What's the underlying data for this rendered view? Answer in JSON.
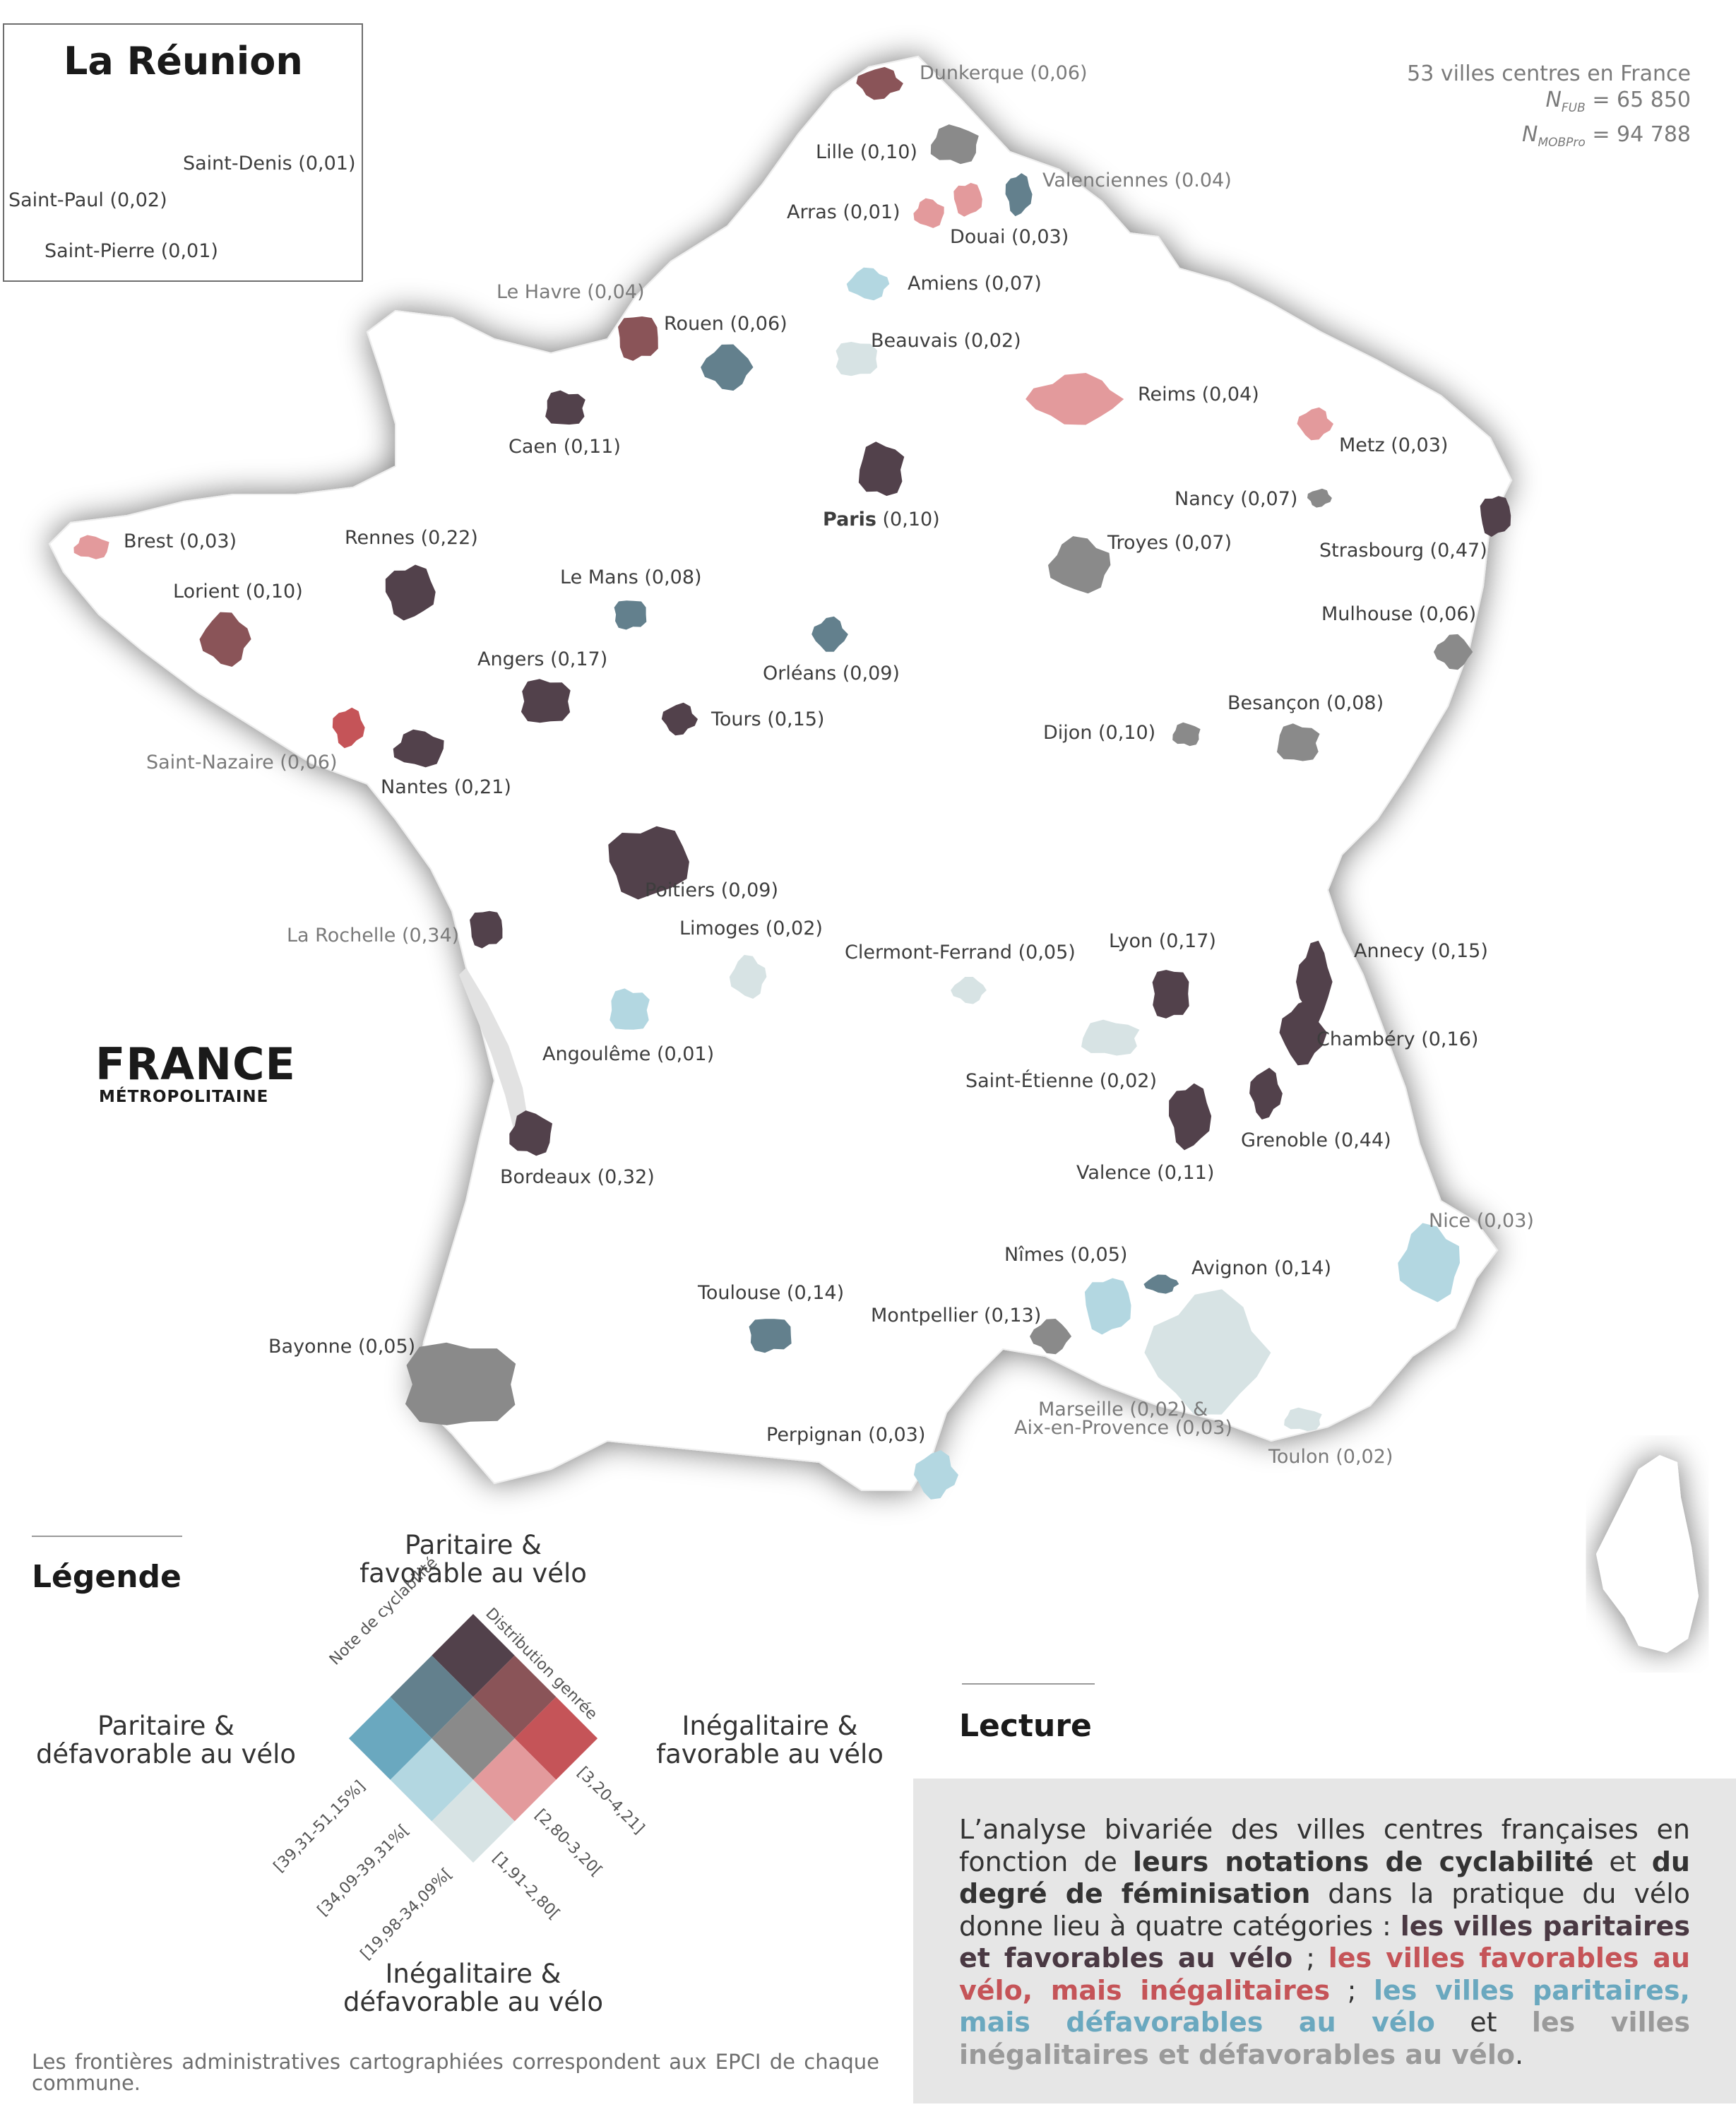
{
  "reunion": {
    "title": "La Réunion",
    "labels": [
      {
        "id": "saint-denis",
        "text": "Saint-Denis (0,01)"
      },
      {
        "id": "saint-paul",
        "text": "Saint-Paul (0,02)"
      },
      {
        "id": "saint-pierre",
        "text": "Saint-Pierre (0,01)"
      }
    ],
    "color": "#d7e3e4"
  },
  "stats": {
    "line1": "53 villes centres en France",
    "fub_sym": "N",
    "fub_sub": "FUB",
    "fub_val": "= 65 850",
    "mob_sym": "N",
    "mob_sub": "MOBPro",
    "mob_val": "= 94 788"
  },
  "france_title": "FRANCE",
  "france_subtitle": "MÉTROPOLITAINE",
  "palette": {
    "c11": "#52414b",
    "c12": "#8a5458",
    "c13": "#c55458",
    "c21": "#63808d",
    "c22": "#8a8a8a",
    "c23": "#e39a9c",
    "c31": "#6aa8bf",
    "c32": "#b3d7e1",
    "c33": "#d7e3e4",
    "land": "#ffffff",
    "shadow": "#d8d8d8"
  },
  "cities": [
    {
      "label": "Dunkerque (0,06)",
      "cls": "c12",
      "tone": "grey"
    },
    {
      "label": "Lille (0,10)",
      "cls": "c22",
      "tone": "dark"
    },
    {
      "label": "Valenciennes (0.04)",
      "cls": "c21",
      "tone": "grey"
    },
    {
      "label": "Arras (0,01)",
      "cls": "c23",
      "tone": "dark"
    },
    {
      "label": "Douai (0,03)",
      "cls": "c23",
      "tone": "dark"
    },
    {
      "label": "Amiens (0,07)",
      "cls": "c32",
      "tone": "dark"
    },
    {
      "label": "Le Havre (0,04)",
      "cls": "c12",
      "tone": "grey"
    },
    {
      "label": "Rouen (0,06)",
      "cls": "c21",
      "tone": "dark"
    },
    {
      "label": "Beauvais (0,02)",
      "cls": "c33",
      "tone": "dark"
    },
    {
      "label": "Reims (0,04)",
      "cls": "c23",
      "tone": "dark"
    },
    {
      "label": "Caen (0,11)",
      "cls": "c11",
      "tone": "dark"
    },
    {
      "label": "Metz (0,03)",
      "cls": "c23",
      "tone": "dark"
    },
    {
      "label": "Paris (0,10)",
      "cls": "c11",
      "tone": "dark"
    },
    {
      "label": "Nancy (0,07)",
      "cls": "c22",
      "tone": "dark"
    },
    {
      "label": "Brest (0,03)",
      "cls": "c23",
      "tone": "dark"
    },
    {
      "label": "Rennes (0,22)",
      "cls": "c11",
      "tone": "dark"
    },
    {
      "label": "Troyes (0,07)",
      "cls": "c22",
      "tone": "dark"
    },
    {
      "label": "Strasbourg (0,47)",
      "cls": "c11",
      "tone": "dark"
    },
    {
      "label": "Lorient (0,10)",
      "cls": "c12",
      "tone": "dark"
    },
    {
      "label": "Le Mans (0,08)",
      "cls": "c21",
      "tone": "dark"
    },
    {
      "label": "Mulhouse (0,06)",
      "cls": "c22",
      "tone": "dark"
    },
    {
      "label": "Angers (0,17)",
      "cls": "c11",
      "tone": "dark"
    },
    {
      "label": "Orléans (0,09)",
      "cls": "c21",
      "tone": "dark"
    },
    {
      "label": "Besançon (0,08)",
      "cls": "c22",
      "tone": "dark"
    },
    {
      "label": "Tours (0,15)",
      "cls": "c11",
      "tone": "dark"
    },
    {
      "label": "Dijon (0,10)",
      "cls": "c22",
      "tone": "dark"
    },
    {
      "label": "Saint-Nazaire (0,06)",
      "cls": "c13",
      "tone": "grey"
    },
    {
      "label": "Nantes (0,21)",
      "cls": "c11",
      "tone": "dark"
    },
    {
      "label": "Poitiers (0,09)",
      "cls": "c11",
      "tone": "dark"
    },
    {
      "label": "Limoges (0,02)",
      "cls": "c33",
      "tone": "dark"
    },
    {
      "label": "La Rochelle (0,34)",
      "cls": "c11",
      "tone": "grey"
    },
    {
      "label": "Clermont-Ferrand (0,05)",
      "cls": "c33",
      "tone": "dark"
    },
    {
      "label": "Lyon (0,17)",
      "cls": "c11",
      "tone": "dark"
    },
    {
      "label": "Annecy (0,15)",
      "cls": "c11",
      "tone": "dark"
    },
    {
      "label": "Angoulême (0,01)",
      "cls": "c32",
      "tone": "dark"
    },
    {
      "label": "Chambéry (0,16)",
      "cls": "c11",
      "tone": "dark"
    },
    {
      "label": "Saint-Étienne (0,02)",
      "cls": "c33",
      "tone": "dark"
    },
    {
      "label": "Grenoble (0,44)",
      "cls": "c11",
      "tone": "dark"
    },
    {
      "label": "Bordeaux (0,32)",
      "cls": "c11",
      "tone": "dark"
    },
    {
      "label": "Valence (0,11)",
      "cls": "c11",
      "tone": "dark"
    },
    {
      "label": "Nice (0,03)",
      "cls": "c32",
      "tone": "grey"
    },
    {
      "label": "Nîmes (0,05)",
      "cls": "c32",
      "tone": "dark"
    },
    {
      "label": "Avignon (0,14)",
      "cls": "c21",
      "tone": "dark"
    },
    {
      "label": "Toulouse (0,14)",
      "cls": "c21",
      "tone": "dark"
    },
    {
      "label": "Montpellier (0,13)",
      "cls": "c22",
      "tone": "dark"
    },
    {
      "label": "Bayonne (0,05)",
      "cls": "c22",
      "tone": "dark"
    },
    {
      "label": "Marseille (0,02) &",
      "cls": "c33",
      "tone": "grey"
    },
    {
      "label": "Aix-en-Provence (0,03)",
      "cls": "c33",
      "tone": "grey"
    },
    {
      "label": "Perpignan (0,03)",
      "cls": "c32",
      "tone": "dark"
    },
    {
      "label": "Toulon (0,02)",
      "cls": "c33",
      "tone": "grey"
    }
  ],
  "legend": {
    "title": "Légende",
    "top": [
      "Paritaire &",
      "favorable au vélo"
    ],
    "left": [
      "Paritaire &",
      "défavorable au vélo"
    ],
    "right": [
      "Inégalitaire &",
      "favorable au vélo"
    ],
    "bottom": [
      "Inégalitaire &",
      "défavorable au vélo"
    ],
    "axis_left": "Note de cyclabilité",
    "axis_right": "Distribution genrée",
    "ticks_left": [
      "[39,31-51,15%]",
      "[34,09-39,31%[",
      "[19,98-34,09%["
    ],
    "ticks_right": [
      "[3,20-4,21]",
      "[2,80-3,20[",
      "[1,91-2,80["
    ]
  },
  "lecture": {
    "title": "Lecture",
    "t1": "L’analyse bivariée des villes centres françaises en fonction de ",
    "b1": "leurs notations de cyclabilité",
    "t2": " et ",
    "b2": "du degré de féminisation",
    "t3": " dans la pratique du vélo donne lieu à quatre catégories : ",
    "dark": "les villes paritaires et favorables au vélo",
    "t4": " ; ",
    "red": "les villes favorables au vélo, mais inégalitaires",
    "t5": " ; ",
    "blue": "les villes paritaires, mais défavorables au vélo",
    "t6": " et ",
    "grey": "les villes inégalitaires et défavorables au vélo",
    "t7": "."
  },
  "footnote": "Les frontières administratives cartographiées correspondent aux EPCI de chaque commune."
}
